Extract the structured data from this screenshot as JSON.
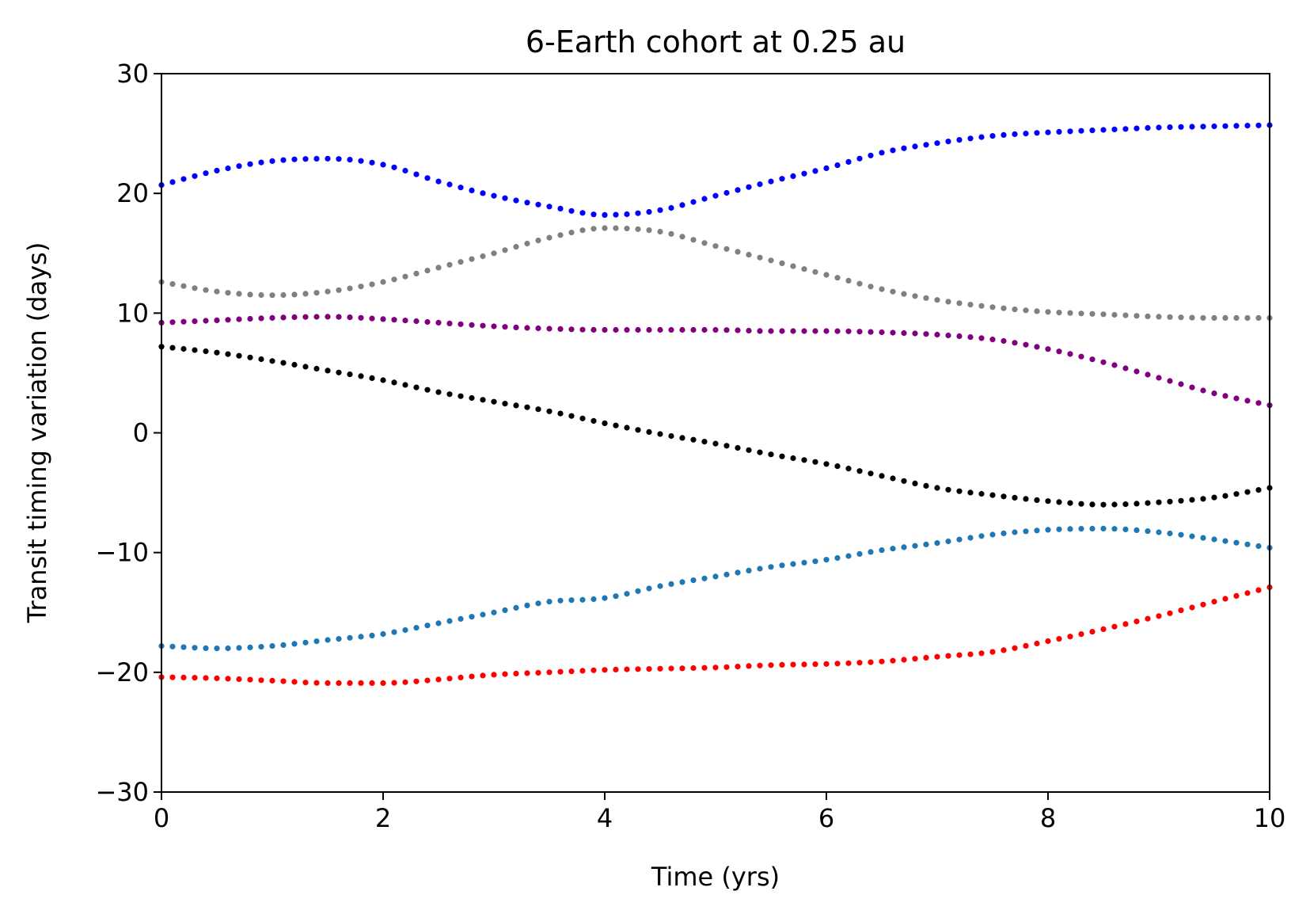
{
  "chart_data": {
    "type": "scatter",
    "title": "6-Earth cohort at 0.25 au",
    "xlabel": "Time (yrs)",
    "ylabel": "Transit timing variation (days)",
    "xlim": [
      0,
      10
    ],
    "ylim": [
      -30,
      30
    ],
    "xticks": [
      0,
      2,
      4,
      6,
      8,
      10
    ],
    "xtick_labels": [
      "0",
      "2",
      "4",
      "6",
      "8",
      "10"
    ],
    "yticks": [
      -30,
      -20,
      -10,
      0,
      10,
      20,
      30
    ],
    "ytick_labels": [
      "−30",
      "−20",
      "−10",
      "0",
      "10",
      "20",
      "30"
    ],
    "grid": false,
    "legend": "none",
    "x": [
      0,
      0.5,
      1,
      1.5,
      2,
      2.5,
      3,
      3.5,
      4,
      4.5,
      5,
      5.5,
      6,
      6.5,
      7,
      7.5,
      8,
      8.5,
      9,
      9.5,
      10
    ],
    "series": [
      {
        "color": "#0000ff",
        "values": [
          20.7,
          21.9,
          22.7,
          22.9,
          22.4,
          21.0,
          19.8,
          18.9,
          18.2,
          18.6,
          19.8,
          21.0,
          22.1,
          23.4,
          24.2,
          24.8,
          25.1,
          25.3,
          25.5,
          25.6,
          25.7
        ]
      },
      {
        "color": "#808080",
        "values": [
          12.6,
          11.8,
          11.5,
          11.8,
          12.6,
          13.8,
          15.0,
          16.3,
          17.1,
          16.8,
          15.6,
          14.4,
          13.2,
          12.0,
          11.1,
          10.5,
          10.1,
          9.9,
          9.7,
          9.6,
          9.6
        ]
      },
      {
        "color": "#800080",
        "values": [
          9.2,
          9.4,
          9.6,
          9.7,
          9.5,
          9.2,
          8.9,
          8.7,
          8.6,
          8.6,
          8.6,
          8.5,
          8.5,
          8.4,
          8.2,
          7.8,
          7.0,
          5.9,
          4.6,
          3.3,
          2.3
        ]
      },
      {
        "color": "#000000",
        "values": [
          7.2,
          6.7,
          6.0,
          5.2,
          4.4,
          3.4,
          2.6,
          1.8,
          0.8,
          -0.1,
          -0.9,
          -1.8,
          -2.6,
          -3.6,
          -4.6,
          -5.2,
          -5.7,
          -6.0,
          -5.8,
          -5.4,
          -4.6
        ]
      },
      {
        "color": "#1f77b4",
        "values": [
          -17.8,
          -18.0,
          -17.8,
          -17.3,
          -16.8,
          -15.9,
          -15.0,
          -14.1,
          -13.8,
          -12.8,
          -12.0,
          -11.2,
          -10.6,
          -9.8,
          -9.2,
          -8.5,
          -8.1,
          -8.0,
          -8.3,
          -8.9,
          -9.6
        ]
      },
      {
        "color": "#ff0000",
        "values": [
          -20.4,
          -20.5,
          -20.7,
          -20.9,
          -20.9,
          -20.6,
          -20.2,
          -20.0,
          -19.8,
          -19.7,
          -19.6,
          -19.4,
          -19.3,
          -19.1,
          -18.7,
          -18.3,
          -17.4,
          -16.4,
          -15.3,
          -14.1,
          -12.9
        ]
      }
    ]
  }
}
